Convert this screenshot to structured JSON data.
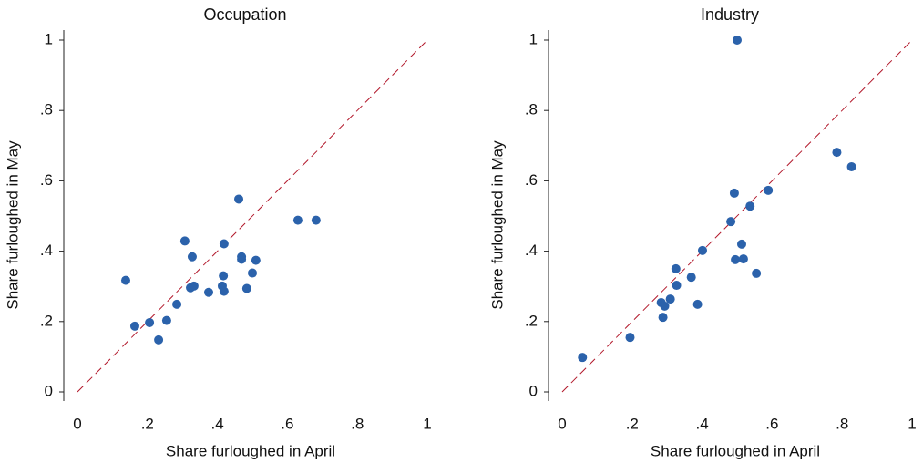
{
  "chart_data": [
    {
      "type": "scatter",
      "title": "Occupation",
      "x_label": "Share furloughed in April",
      "y_label": "Share furloughed in May",
      "color": "#2b62ab",
      "diagonal_color": "#b2182b",
      "xlim": [
        0,
        1
      ],
      "ylim": [
        0,
        1
      ],
      "xticks": [
        0,
        {
          "value": 0.2,
          "label": ".2"
        },
        {
          "value": 0.4,
          "label": ".4"
        },
        {
          "value": 0.6,
          "label": ".6"
        },
        {
          "value": 0.8,
          "label": ".8"
        },
        1
      ],
      "yticks": [
        0,
        {
          "value": 0.2,
          "label": ".2"
        },
        {
          "value": 0.4,
          "label": ".4"
        },
        {
          "value": 0.6,
          "label": ".6"
        },
        {
          "value": 0.8,
          "label": ".8"
        },
        1
      ],
      "x": [
        0.138,
        0.164,
        0.206,
        0.232,
        0.255,
        0.284,
        0.307,
        0.323,
        0.328,
        0.333,
        0.375,
        0.414,
        0.417,
        0.419,
        0.419,
        0.461,
        0.469,
        0.469,
        0.484,
        0.5,
        0.51,
        0.63,
        0.682
      ],
      "values": [
        0.317,
        0.187,
        0.197,
        0.148,
        0.203,
        0.249,
        0.429,
        0.296,
        0.384,
        0.301,
        0.283,
        0.301,
        0.33,
        0.421,
        0.286,
        0.548,
        0.384,
        0.377,
        0.294,
        0.338,
        0.374,
        0.488,
        0.488
      ]
    },
    {
      "type": "scatter",
      "title": "Industry",
      "x_label": "Share furloughed in April",
      "y_label": "Share furloughed in May",
      "color": "#2b62ab",
      "diagonal_color": "#b2182b",
      "xlim": [
        0,
        1
      ],
      "ylim": [
        0,
        1
      ],
      "xticks": [
        0,
        {
          "value": 0.2,
          "label": ".2"
        },
        {
          "value": 0.4,
          "label": ".4"
        },
        {
          "value": 0.6,
          "label": ".6"
        },
        {
          "value": 0.8,
          "label": ".8"
        },
        1
      ],
      "yticks": [
        0,
        {
          "value": 0.2,
          "label": ".2"
        },
        {
          "value": 0.4,
          "label": ".4"
        },
        {
          "value": 0.6,
          "label": ".6"
        },
        {
          "value": 0.8,
          "label": ".8"
        },
        1
      ],
      "x": [
        0.058,
        0.194,
        0.283,
        0.288,
        0.293,
        0.309,
        0.325,
        0.327,
        0.369,
        0.401,
        0.387,
        0.482,
        0.492,
        0.495,
        0.5,
        0.513,
        0.518,
        0.537,
        0.555,
        0.589,
        0.785,
        0.827
      ],
      "values": [
        0.098,
        0.155,
        0.254,
        0.212,
        0.244,
        0.264,
        0.35,
        0.303,
        0.326,
        0.402,
        0.249,
        0.484,
        0.565,
        0.376,
        1.0,
        0.42,
        0.378,
        0.528,
        0.337,
        0.573,
        0.681,
        0.64
      ]
    }
  ]
}
